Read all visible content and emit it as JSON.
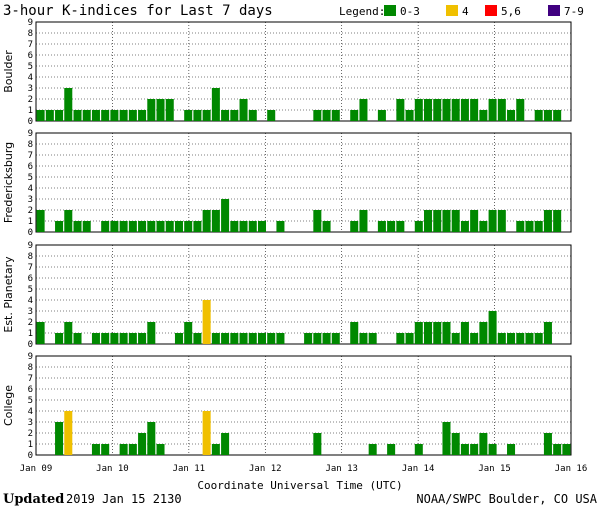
{
  "header": {
    "title": "3-hour K-indices for Last 7 days"
  },
  "legend": {
    "title": "Legend:",
    "items": [
      {
        "label": "0-3",
        "color": "#008800"
      },
      {
        "label": "4",
        "color": "#f0c000"
      },
      {
        "label": "5,6",
        "color": "#ff0000"
      },
      {
        "label": "7-9",
        "color": "#400080"
      }
    ]
  },
  "footer": {
    "updated_label": "Updated",
    "updated_value": "2019 Jan 15 2130",
    "credit": "NOAA/SWPC Boulder, CO USA"
  },
  "chart_data": [
    {
      "type": "bar",
      "title": "Boulder",
      "ylabel": "Boulder",
      "xlabel": "Coordinate Universal Time (UTC)",
      "ylim": [
        0,
        9
      ],
      "x_ticks": [
        "Jan 09",
        "Jan 10",
        "Jan 11",
        "Jan 12",
        "Jan 13",
        "Jan 14",
        "Jan 15",
        "Jan 16"
      ],
      "values": [
        1,
        1,
        1,
        3,
        1,
        1,
        1,
        1,
        1,
        1,
        1,
        1,
        2,
        2,
        2,
        0,
        1,
        1,
        1,
        3,
        1,
        1,
        2,
        1,
        0,
        1,
        0,
        0,
        0,
        0,
        1,
        1,
        1,
        0,
        1,
        2,
        0,
        1,
        0,
        2,
        1,
        2,
        2,
        2,
        2,
        2,
        2,
        2,
        1,
        2,
        2,
        1,
        2,
        0,
        1,
        1,
        1,
        0
      ]
    },
    {
      "type": "bar",
      "title": "Fredericksburg",
      "ylabel": "Fredericksburg",
      "ylim": [
        0,
        9
      ],
      "x_ticks": [
        "Jan 09",
        "Jan 10",
        "Jan 11",
        "Jan 12",
        "Jan 13",
        "Jan 14",
        "Jan 15",
        "Jan 16"
      ],
      "values": [
        2,
        0,
        1,
        2,
        1,
        1,
        0,
        1,
        1,
        1,
        1,
        1,
        1,
        1,
        1,
        1,
        1,
        1,
        2,
        2,
        3,
        1,
        1,
        1,
        1,
        0,
        1,
        0,
        0,
        0,
        2,
        1,
        0,
        0,
        1,
        2,
        0,
        1,
        1,
        1,
        0,
        1,
        2,
        2,
        2,
        2,
        1,
        2,
        1,
        2,
        2,
        0,
        1,
        1,
        1,
        2,
        2,
        0
      ]
    },
    {
      "type": "bar",
      "title": "Est. Planetary",
      "ylabel": "Est. Planetary",
      "ylim": [
        0,
        9
      ],
      "x_ticks": [
        "Jan 09",
        "Jan 10",
        "Jan 11",
        "Jan 12",
        "Jan 13",
        "Jan 14",
        "Jan 15",
        "Jan 16"
      ],
      "values": [
        2,
        0,
        1,
        2,
        1,
        0,
        1,
        1,
        1,
        1,
        1,
        1,
        2,
        0,
        0,
        1,
        2,
        1,
        4,
        1,
        1,
        1,
        1,
        1,
        1,
        1,
        1,
        0,
        0,
        1,
        1,
        1,
        1,
        0,
        2,
        1,
        1,
        0,
        0,
        1,
        1,
        2,
        2,
        2,
        2,
        1,
        2,
        1,
        2,
        3,
        1,
        1,
        1,
        1,
        1,
        2,
        0,
        0
      ],
      "value_colors_note": "value 4 shown in yellow"
    },
    {
      "type": "bar",
      "title": "College",
      "ylabel": "College",
      "ylim": [
        0,
        9
      ],
      "x_ticks": [
        "Jan 09",
        "Jan 10",
        "Jan 11",
        "Jan 12",
        "Jan 13",
        "Jan 14",
        "Jan 15",
        "Jan 16"
      ],
      "values": [
        0,
        0,
        3,
        4,
        0,
        0,
        1,
        1,
        0,
        1,
        1,
        2,
        3,
        1,
        0,
        0,
        0,
        0,
        4,
        1,
        2,
        0,
        0,
        0,
        0,
        0,
        0,
        0,
        0,
        0,
        2,
        0,
        0,
        0,
        0,
        0,
        1,
        0,
        1,
        0,
        0,
        1,
        0,
        0,
        3,
        2,
        1,
        1,
        2,
        1,
        0,
        1,
        0,
        0,
        0,
        2,
        1,
        1
      ]
    }
  ],
  "colors": {
    "quiet": "#008800",
    "active": "#f0c000",
    "storm": "#ff0000",
    "severe": "#400080",
    "grid": "#000000"
  }
}
